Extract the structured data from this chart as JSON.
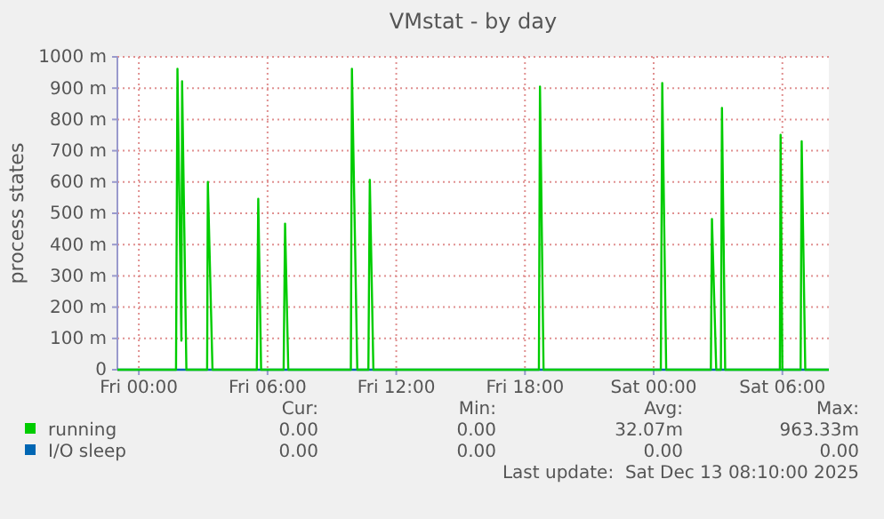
{
  "chart_data": {
    "type": "line",
    "title": "VMstat - by day",
    "ylabel": "process states",
    "x": [
      "2025-12-11T23:00",
      "2025-12-12T01:44",
      "2025-12-12T01:48",
      "2025-12-12T01:59",
      "2025-12-12T02:01",
      "2025-12-12T02:13",
      "2025-12-12T03:11",
      "2025-12-12T03:13",
      "2025-12-12T03:26",
      "2025-12-12T05:30",
      "2025-12-12T05:34",
      "2025-12-12T05:42",
      "2025-12-12T06:45",
      "2025-12-12T06:49",
      "2025-12-12T06:58",
      "2025-12-12T09:53",
      "2025-12-12T09:56",
      "2025-12-12T10:11",
      "2025-12-12T10:42",
      "2025-12-12T10:46",
      "2025-12-12T10:56",
      "2025-12-12T18:39",
      "2025-12-12T18:42",
      "2025-12-12T18:52",
      "2025-12-13T00:20",
      "2025-12-13T00:24",
      "2025-12-13T00:35",
      "2025-12-13T02:40",
      "2025-12-13T02:43",
      "2025-12-13T02:55",
      "2025-12-13T03:08",
      "2025-12-13T03:11",
      "2025-12-13T03:20",
      "2025-12-13T05:53",
      "2025-12-13T05:55",
      "2025-12-13T06:00",
      "2025-12-13T06:51",
      "2025-12-13T06:54",
      "2025-12-13T07:04",
      "2025-12-13T08:10"
    ],
    "series": [
      {
        "name": "running",
        "color": "#00cc00",
        "values": [
          0,
          0,
          962,
          93,
          922,
          0,
          0,
          600,
          0,
          0,
          546,
          0,
          0,
          467,
          0,
          0,
          962,
          0,
          0,
          607,
          0,
          0,
          905,
          0,
          0,
          916,
          0,
          0,
          482,
          0,
          0,
          837,
          0,
          0,
          751,
          0,
          0,
          730,
          0,
          0
        ]
      },
      {
        "name": "I/O sleep",
        "color": "#0066b3",
        "x": [
          "2025-12-11T23:00",
          "2025-12-13T08:10"
        ],
        "values": [
          0,
          0
        ]
      }
    ],
    "xlim": [
      "2025-12-11T23:00",
      "2025-12-13T08:10"
    ],
    "xticks": [
      {
        "value": "2025-12-12T00:00",
        "label": "Fri 00:00"
      },
      {
        "value": "2025-12-12T06:00",
        "label": "Fri 06:00"
      },
      {
        "value": "2025-12-12T12:00",
        "label": "Fri 12:00"
      },
      {
        "value": "2025-12-12T18:00",
        "label": "Fri 18:00"
      },
      {
        "value": "2025-12-13T00:00",
        "label": "Sat 00:00"
      },
      {
        "value": "2025-12-13T06:00",
        "label": "Sat 06:00"
      }
    ],
    "ylim": [
      0,
      1000
    ],
    "yticks": [
      0,
      {
        "value": 100,
        "label": "100 m"
      },
      {
        "value": 200,
        "label": "200 m"
      },
      {
        "value": 300,
        "label": "300 m"
      },
      {
        "value": 400,
        "label": "400 m"
      },
      {
        "value": 500,
        "label": "500 m"
      },
      {
        "value": 600,
        "label": "600 m"
      },
      {
        "value": 700,
        "label": "700 m"
      },
      {
        "value": 800,
        "label": "800 m"
      },
      {
        "value": 900,
        "label": "900 m"
      },
      {
        "value": 1000,
        "label": "1000 m"
      }
    ],
    "grid": true,
    "legend": "bottom",
    "marker": "none",
    "line_style": "solid",
    "annotations": [
      "Cur:",
      "Min:",
      "Avg:",
      "Max:",
      "0.00",
      "0.00",
      "32.07m",
      "963.33m",
      "0.00",
      "0.00",
      "0.00",
      "0.00",
      "Last update:  Sat Dec 13 08:10:00 2025"
    ]
  }
}
